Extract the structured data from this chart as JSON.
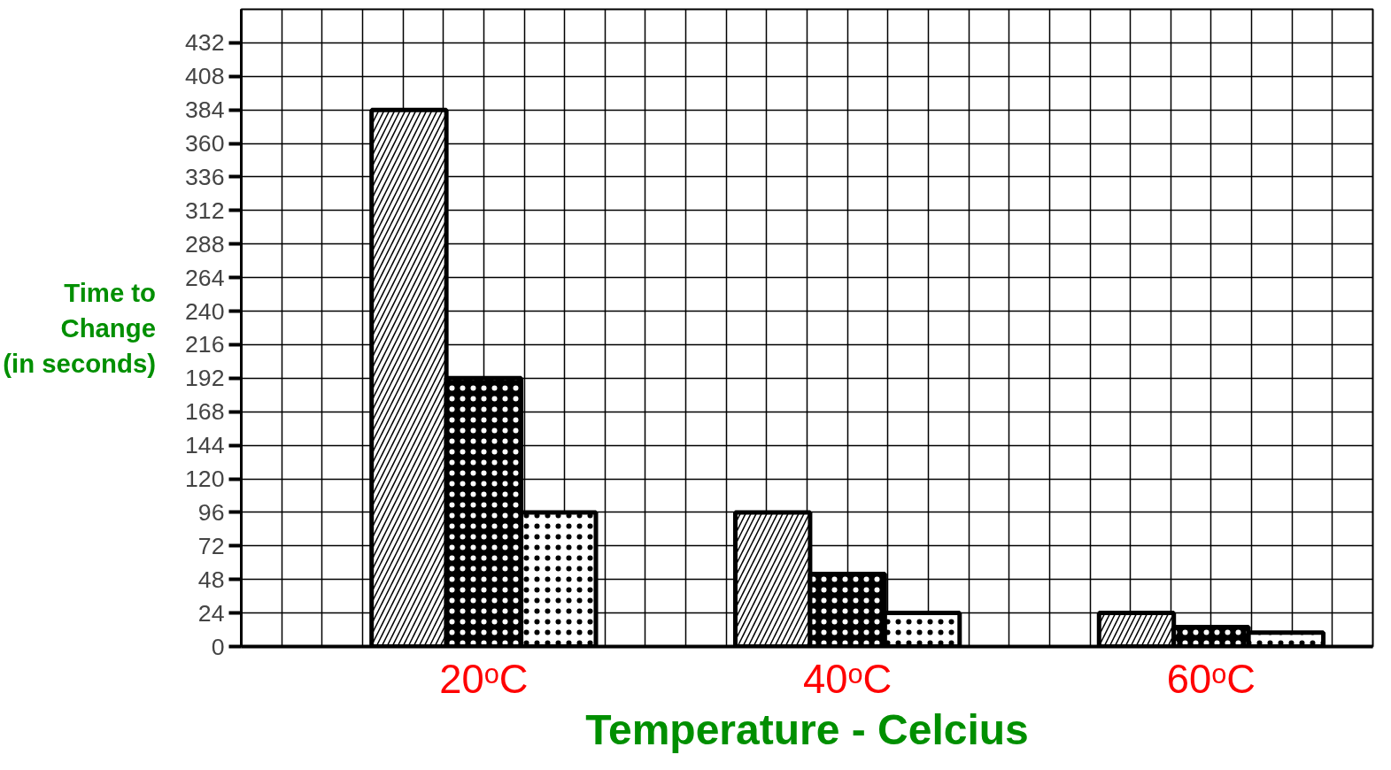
{
  "chart_data": {
    "type": "bar",
    "xlabel": "Temperature - Celcius",
    "ylabel": "Time to Change (in seconds)",
    "categories": [
      "20ᵒC",
      "40ᵒC",
      "60ᵒC"
    ],
    "series": [
      {
        "color": "#ffffff",
        "values": [
          384,
          96,
          24
        ]
      },
      {
        "color": "#000000",
        "values": [
          192,
          52,
          14
        ]
      },
      {
        "color": "#ffffff",
        "values": [
          96,
          24,
          10
        ]
      }
    ],
    "ylim": [
      0,
      456
    ],
    "yticks": [
      0,
      24,
      48,
      72,
      96,
      120,
      144,
      168,
      192,
      216,
      240,
      264,
      288,
      312,
      336,
      360,
      384,
      408,
      432
    ],
    "grid": true
  }
}
